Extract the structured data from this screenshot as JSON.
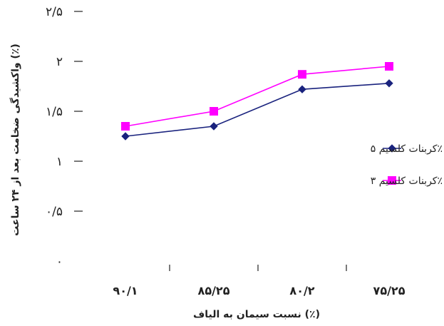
{
  "chart_data": {
    "type": "line",
    "categories": [
      "۹۰/۱",
      "۸۵/۲۵",
      "۸۰/۲",
      "۷۵/۲۵"
    ],
    "series": [
      {
        "name": "کربنات کلسیم ۵٪",
        "values": [
          1.25,
          1.35,
          1.72,
          1.78
        ],
        "color": "#1a237e",
        "marker": "diamond"
      },
      {
        "name": "کربنات کلسیم ۳٪",
        "values": [
          1.35,
          1.5,
          1.87,
          1.95
        ],
        "color": "#ff00ff",
        "marker": "square"
      }
    ],
    "yticks": [
      "۰",
      "۰/۵",
      "۱",
      "۱/۵",
      "۲",
      "۲/۵"
    ],
    "ylim": [
      0,
      2.5
    ],
    "xlabel": "نسبت سیمان به الیاف (٪)",
    "ylabel": "واکشیدگی ضخامت بعد از ۲۴ ساعت (٪)",
    "grid": false,
    "legend_position": "right"
  }
}
